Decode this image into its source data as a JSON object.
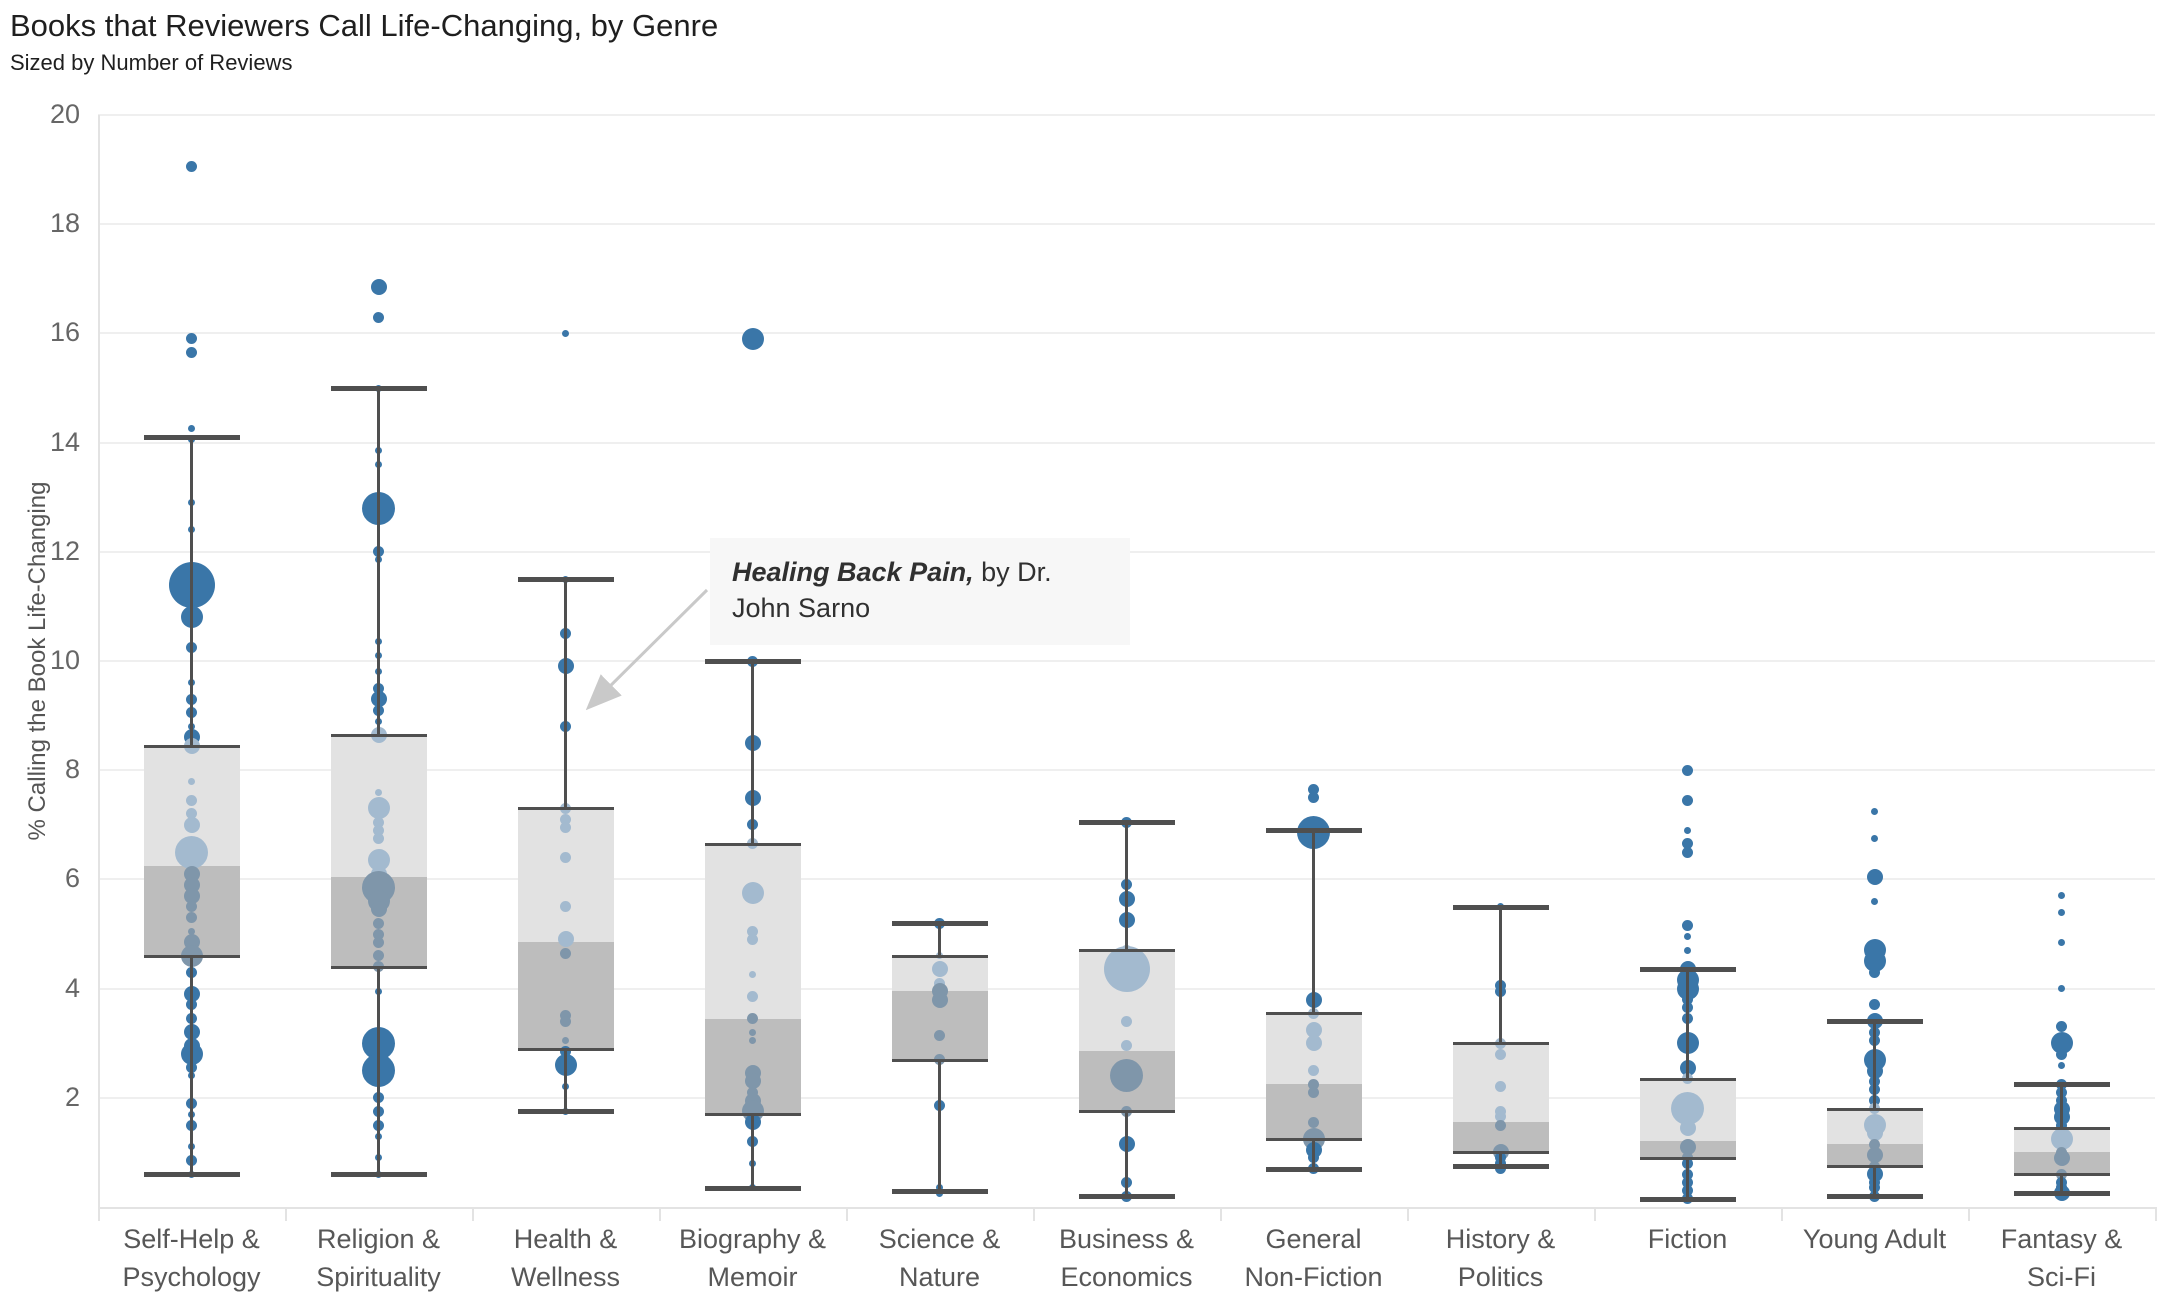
{
  "header": {
    "title": "Books that Reviewers Call Life-Changing, by Genre",
    "subtitle": "Sized by Number of Reviews"
  },
  "annotation": {
    "line1_bold": "Healing Back Pain,",
    "line1_rest": " by Dr.",
    "line2": "John Sarno",
    "target_genre": "Health & Wellness",
    "target_value": 8.8
  },
  "colors": {
    "mark_blue": "#3a76a8",
    "mark_inbox_light": "#a3bacf",
    "mark_inbox_dark": "#7f96aa",
    "box_upper_fill": "#e2e2e2",
    "box_lower_fill": "#bdbdbd",
    "box_line": "#4f4f4f",
    "gridline": "#efefef",
    "axis_line": "#e3e3e3",
    "annotation_bg": "#f7f7f7",
    "arrow": "#c9c9c9"
  },
  "chart_data": {
    "type": "box-strip",
    "title": "Books that Reviewers Call Life-Changing, by Genre",
    "subtitle": "Sized by Number of Reviews",
    "ylabel": "% Calling the Book Life-Changing",
    "ylim": [
      0,
      20
    ],
    "yticks": [
      2,
      4,
      6,
      8,
      10,
      12,
      14,
      16,
      18,
      20
    ],
    "grid": "horizontal",
    "legend": "none",
    "size_legend_note": "bubble size = number of reviews (classes 1-6)",
    "categories": [
      "Self-Help &\nPsychology",
      "Religion &\nSpirituality",
      "Health &\nWellness",
      "Biography &\nMemoir",
      "Science &\nNature",
      "Business &\nEconomics",
      "General\nNon-Fiction",
      "History &\nPolitics",
      "Fiction",
      "Young Adult",
      "Fantasy &\nSci-Fi"
    ],
    "series": [
      {
        "genre": "Self-Help & Psychology",
        "box": {
          "whisker_low": 0.6,
          "q1": 4.6,
          "median": 6.25,
          "q3": 8.45,
          "whisker_high": 14.1
        },
        "points": [
          [
            19.05,
            2
          ],
          [
            15.9,
            2
          ],
          [
            15.65,
            2
          ],
          [
            14.25,
            1
          ],
          [
            14.05,
            1
          ],
          [
            12.9,
            1
          ],
          [
            12.4,
            1
          ],
          [
            11.4,
            6
          ],
          [
            10.8,
            4
          ],
          [
            10.25,
            2
          ],
          [
            9.6,
            1
          ],
          [
            9.3,
            2
          ],
          [
            9.05,
            2
          ],
          [
            8.8,
            1
          ],
          [
            8.6,
            3
          ],
          [
            8.45,
            3
          ],
          [
            7.8,
            1
          ],
          [
            7.45,
            2
          ],
          [
            7.2,
            2
          ],
          [
            7.0,
            3
          ],
          [
            6.5,
            5
          ],
          [
            6.1,
            3
          ],
          [
            5.9,
            3
          ],
          [
            5.7,
            3
          ],
          [
            5.5,
            2
          ],
          [
            5.3,
            2
          ],
          [
            5.05,
            1
          ],
          [
            4.85,
            3
          ],
          [
            4.6,
            4
          ],
          [
            4.3,
            2
          ],
          [
            3.9,
            3
          ],
          [
            3.7,
            2
          ],
          [
            3.45,
            2
          ],
          [
            3.2,
            3
          ],
          [
            2.95,
            3
          ],
          [
            2.8,
            4
          ],
          [
            2.55,
            2
          ],
          [
            2.4,
            1
          ],
          [
            1.9,
            2
          ],
          [
            1.7,
            1
          ],
          [
            1.5,
            2
          ],
          [
            1.1,
            1
          ],
          [
            0.85,
            2
          ],
          [
            0.6,
            1
          ]
        ]
      },
      {
        "genre": "Religion & Spirituality",
        "box": {
          "whisker_low": 0.6,
          "q1": 4.4,
          "median": 6.05,
          "q3": 8.65,
          "whisker_high": 15.0
        },
        "points": [
          [
            16.85,
            3
          ],
          [
            16.3,
            2
          ],
          [
            15.0,
            1
          ],
          [
            13.85,
            1
          ],
          [
            13.6,
            1
          ],
          [
            12.8,
            5
          ],
          [
            12.0,
            2
          ],
          [
            11.85,
            1
          ],
          [
            10.35,
            1
          ],
          [
            10.1,
            1
          ],
          [
            9.8,
            1
          ],
          [
            9.5,
            2
          ],
          [
            9.3,
            3
          ],
          [
            9.1,
            2
          ],
          [
            8.9,
            1
          ],
          [
            8.65,
            3
          ],
          [
            7.6,
            1
          ],
          [
            7.3,
            4
          ],
          [
            7.05,
            2
          ],
          [
            6.9,
            2
          ],
          [
            6.75,
            2
          ],
          [
            6.35,
            4
          ],
          [
            6.1,
            3
          ],
          [
            5.85,
            5
          ],
          [
            5.6,
            4
          ],
          [
            5.45,
            3
          ],
          [
            5.2,
            2
          ],
          [
            5.0,
            2
          ],
          [
            4.85,
            2
          ],
          [
            4.6,
            2
          ],
          [
            4.4,
            2
          ],
          [
            3.95,
            1
          ],
          [
            3.0,
            5
          ],
          [
            2.5,
            5
          ],
          [
            2.0,
            2
          ],
          [
            1.75,
            2
          ],
          [
            1.5,
            2
          ],
          [
            1.3,
            1
          ],
          [
            0.9,
            1
          ],
          [
            0.6,
            1
          ]
        ]
      },
      {
        "genre": "Health & Wellness",
        "box": {
          "whisker_low": 1.75,
          "q1": 2.9,
          "median": 4.85,
          "q3": 7.3,
          "whisker_high": 11.5
        },
        "points": [
          [
            16.0,
            1
          ],
          [
            11.5,
            1
          ],
          [
            10.5,
            2
          ],
          [
            9.9,
            3
          ],
          [
            8.8,
            2
          ],
          [
            7.3,
            2
          ],
          [
            7.1,
            2
          ],
          [
            6.95,
            2
          ],
          [
            6.4,
            2
          ],
          [
            5.5,
            2
          ],
          [
            4.9,
            3
          ],
          [
            4.65,
            2
          ],
          [
            3.5,
            2
          ],
          [
            3.4,
            2
          ],
          [
            3.05,
            1
          ],
          [
            2.85,
            2
          ],
          [
            2.6,
            4
          ],
          [
            2.2,
            1
          ],
          [
            1.75,
            1
          ]
        ]
      },
      {
        "genre": "Biography & Memoir",
        "box": {
          "whisker_low": 0.35,
          "q1": 1.7,
          "median": 3.45,
          "q3": 6.65,
          "whisker_high": 10.0
        },
        "points": [
          [
            15.9,
            4
          ],
          [
            10.0,
            2
          ],
          [
            8.5,
            3
          ],
          [
            7.5,
            3
          ],
          [
            7.0,
            2
          ],
          [
            6.65,
            2
          ],
          [
            5.75,
            4
          ],
          [
            5.05,
            2
          ],
          [
            4.9,
            2
          ],
          [
            4.25,
            1
          ],
          [
            3.85,
            2
          ],
          [
            3.45,
            2
          ],
          [
            3.2,
            1
          ],
          [
            3.05,
            1
          ],
          [
            2.45,
            3
          ],
          [
            2.3,
            3
          ],
          [
            2.1,
            2
          ],
          [
            1.95,
            3
          ],
          [
            1.75,
            4
          ],
          [
            1.55,
            3
          ],
          [
            1.2,
            2
          ],
          [
            0.8,
            1
          ],
          [
            0.35,
            1
          ]
        ]
      },
      {
        "genre": "Science & Nature",
        "box": {
          "whisker_low": 0.3,
          "q1": 2.7,
          "median": 3.95,
          "q3": 4.6,
          "whisker_high": 5.2
        },
        "points": [
          [
            5.2,
            2
          ],
          [
            4.6,
            1
          ],
          [
            4.35,
            3
          ],
          [
            4.1,
            2
          ],
          [
            3.95,
            3
          ],
          [
            3.8,
            3
          ],
          [
            3.15,
            2
          ],
          [
            2.7,
            2
          ],
          [
            1.85,
            2
          ],
          [
            0.35,
            1
          ],
          [
            0.25,
            1
          ]
        ]
      },
      {
        "genre": "Business & Economics",
        "box": {
          "whisker_low": 0.2,
          "q1": 1.75,
          "median": 2.85,
          "q3": 4.7,
          "whisker_high": 7.05
        },
        "points": [
          [
            7.05,
            2
          ],
          [
            5.9,
            2
          ],
          [
            5.65,
            3
          ],
          [
            5.25,
            3
          ],
          [
            4.7,
            2
          ],
          [
            4.35,
            6
          ],
          [
            3.4,
            2
          ],
          [
            2.95,
            2
          ],
          [
            2.4,
            5
          ],
          [
            1.75,
            2
          ],
          [
            1.15,
            3
          ],
          [
            0.45,
            2
          ],
          [
            0.2,
            2
          ]
        ]
      },
      {
        "genre": "General Non-Fiction",
        "box": {
          "whisker_low": 0.7,
          "q1": 1.25,
          "median": 2.25,
          "q3": 3.55,
          "whisker_high": 6.9
        },
        "points": [
          [
            7.65,
            2
          ],
          [
            7.5,
            2
          ],
          [
            6.85,
            5
          ],
          [
            3.8,
            3
          ],
          [
            3.55,
            2
          ],
          [
            3.25,
            3
          ],
          [
            3.0,
            3
          ],
          [
            2.5,
            2
          ],
          [
            2.25,
            2
          ],
          [
            2.1,
            2
          ],
          [
            1.55,
            2
          ],
          [
            1.25,
            4
          ],
          [
            1.05,
            3
          ],
          [
            0.9,
            2
          ],
          [
            0.7,
            2
          ]
        ]
      },
      {
        "genre": "History & Politics",
        "box": {
          "whisker_low": 0.75,
          "q1": 1.0,
          "median": 1.55,
          "q3": 3.0,
          "whisker_high": 5.5
        },
        "points": [
          [
            5.5,
            1
          ],
          [
            4.05,
            2
          ],
          [
            3.95,
            2
          ],
          [
            3.0,
            2
          ],
          [
            2.8,
            2
          ],
          [
            2.2,
            2
          ],
          [
            1.75,
            2
          ],
          [
            1.65,
            2
          ],
          [
            1.5,
            2
          ],
          [
            1.0,
            3
          ],
          [
            0.9,
            2
          ],
          [
            0.8,
            2
          ],
          [
            0.7,
            2
          ]
        ]
      },
      {
        "genre": "Fiction",
        "box": {
          "whisker_low": 0.15,
          "q1": 0.9,
          "median": 1.2,
          "q3": 2.35,
          "whisker_high": 4.35
        },
        "points": [
          [
            8.0,
            2
          ],
          [
            7.45,
            2
          ],
          [
            6.9,
            1
          ],
          [
            6.65,
            2
          ],
          [
            6.5,
            2
          ],
          [
            5.15,
            2
          ],
          [
            4.95,
            1
          ],
          [
            4.7,
            1
          ],
          [
            4.35,
            3
          ],
          [
            4.15,
            4
          ],
          [
            4.0,
            4
          ],
          [
            3.8,
            2
          ],
          [
            3.65,
            2
          ],
          [
            3.45,
            2
          ],
          [
            3.0,
            4
          ],
          [
            2.55,
            3
          ],
          [
            2.35,
            2
          ],
          [
            1.8,
            5
          ],
          [
            1.45,
            3
          ],
          [
            1.1,
            3
          ],
          [
            0.9,
            2
          ],
          [
            0.8,
            2
          ],
          [
            0.6,
            2
          ],
          [
            0.45,
            2
          ],
          [
            0.3,
            2
          ],
          [
            0.15,
            2
          ]
        ]
      },
      {
        "genre": "Young Adult",
        "box": {
          "whisker_low": 0.2,
          "q1": 0.75,
          "median": 1.15,
          "q3": 1.8,
          "whisker_high": 3.4
        },
        "points": [
          [
            7.25,
            1
          ],
          [
            6.75,
            1
          ],
          [
            6.05,
            3
          ],
          [
            5.6,
            1
          ],
          [
            4.7,
            4
          ],
          [
            4.5,
            4
          ],
          [
            4.3,
            2
          ],
          [
            3.7,
            2
          ],
          [
            3.4,
            3
          ],
          [
            3.2,
            2
          ],
          [
            3.05,
            2
          ],
          [
            2.7,
            4
          ],
          [
            2.5,
            3
          ],
          [
            2.3,
            2
          ],
          [
            2.15,
            2
          ],
          [
            1.95,
            2
          ],
          [
            1.8,
            2
          ],
          [
            1.5,
            4
          ],
          [
            1.35,
            3
          ],
          [
            1.15,
            2
          ],
          [
            0.95,
            3
          ],
          [
            0.75,
            2
          ],
          [
            0.6,
            3
          ],
          [
            0.45,
            2
          ],
          [
            0.35,
            2
          ],
          [
            0.2,
            2
          ]
        ]
      },
      {
        "genre": "Fantasy & Sci-Fi",
        "box": {
          "whisker_low": 0.25,
          "q1": 0.6,
          "median": 1.0,
          "q3": 1.45,
          "whisker_high": 2.25
        },
        "points": [
          [
            5.7,
            1
          ],
          [
            5.4,
            1
          ],
          [
            4.85,
            1
          ],
          [
            4.0,
            1
          ],
          [
            3.3,
            2
          ],
          [
            3.0,
            4
          ],
          [
            2.8,
            2
          ],
          [
            2.6,
            1
          ],
          [
            2.25,
            2
          ],
          [
            2.1,
            2
          ],
          [
            1.95,
            2
          ],
          [
            1.8,
            3
          ],
          [
            1.65,
            3
          ],
          [
            1.5,
            2
          ],
          [
            1.25,
            4
          ],
          [
            1.0,
            2
          ],
          [
            0.9,
            3
          ],
          [
            0.6,
            2
          ],
          [
            0.45,
            2
          ],
          [
            0.35,
            2
          ],
          [
            0.25,
            3
          ]
        ]
      }
    ]
  }
}
